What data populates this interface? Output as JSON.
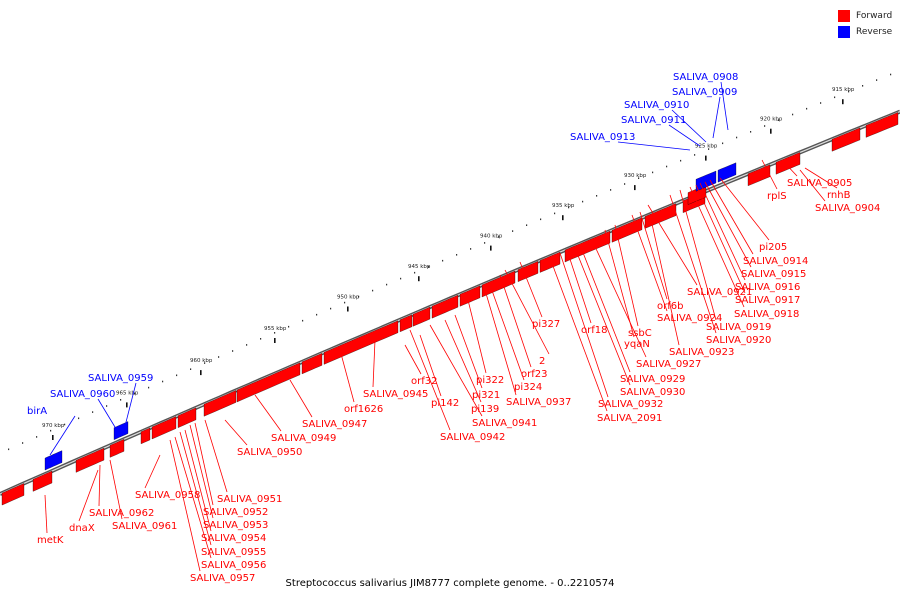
{
  "caption": "Streptococcus salivarius JIM8777 complete genome. - 0..2210574",
  "legend": [
    {
      "label": "Forward",
      "color": "#ff0000"
    },
    {
      "label": "Reverse",
      "color": "#0000ff"
    }
  ],
  "colors": {
    "forward": "#ff0000",
    "reverse": "#0000ff",
    "backbone": "#888888",
    "leader": "#ff0000",
    "reverse_leader": "#0000ff"
  },
  "ticks": [
    "915 kbp",
    "920 kbp",
    "925 kbp",
    "930 kbp",
    "935 kbp",
    "940 kbp",
    "945 kbp",
    "950 kbp",
    "955 kbp",
    "960 kbp",
    "965 kbp",
    "970 kbp"
  ],
  "forward_labels": [
    "SALIVA_0905",
    "rnhB",
    "SALIVA_0904",
    "rplS",
    "pi205",
    "SALIVA_0914",
    "SALIVA_0915",
    "SALIVA_0921",
    "SALIVA_0916",
    "SALIVA_0917",
    "orf6b",
    "SALIVA_0918",
    "SALIVA_0924",
    "SALIVA_0919",
    "ssbC",
    "SALIVA_0920",
    "orf18",
    "yqaN",
    "SALIVA_0923",
    "pi327",
    "SALIVA_0927",
    "SALIVA_0929",
    "SALIVA_0930",
    "SALIVA_0932",
    "SALIVA_2091",
    "2",
    "orf23",
    "pi322",
    "pi324",
    "orf32",
    "SALIVA_0945",
    "pi321",
    "SALIVA_0937",
    "pi142",
    "pi139",
    "orf1626",
    "SALIVA_0941",
    "SALIVA_0947",
    "SALIVA_0942",
    "SALIVA_0949",
    "SALIVA_0950",
    "SALIVA_0958",
    "SALIVA_0951",
    "SALIVA_0962",
    "SALIVA_0952",
    "SALIVA_0961",
    "dnaX",
    "SALIVA_0953",
    "metK",
    "SALIVA_0954",
    "SALIVA_0955",
    "SALIVA_0956",
    "SALIVA_0957"
  ],
  "reverse_labels": [
    "SALIVA_0908",
    "SALIVA_0909",
    "SALIVA_0910",
    "SALIVA_0911",
    "SALIVA_0913",
    "SALIVA_0959",
    "SALIVA_0960",
    "birA"
  ]
}
